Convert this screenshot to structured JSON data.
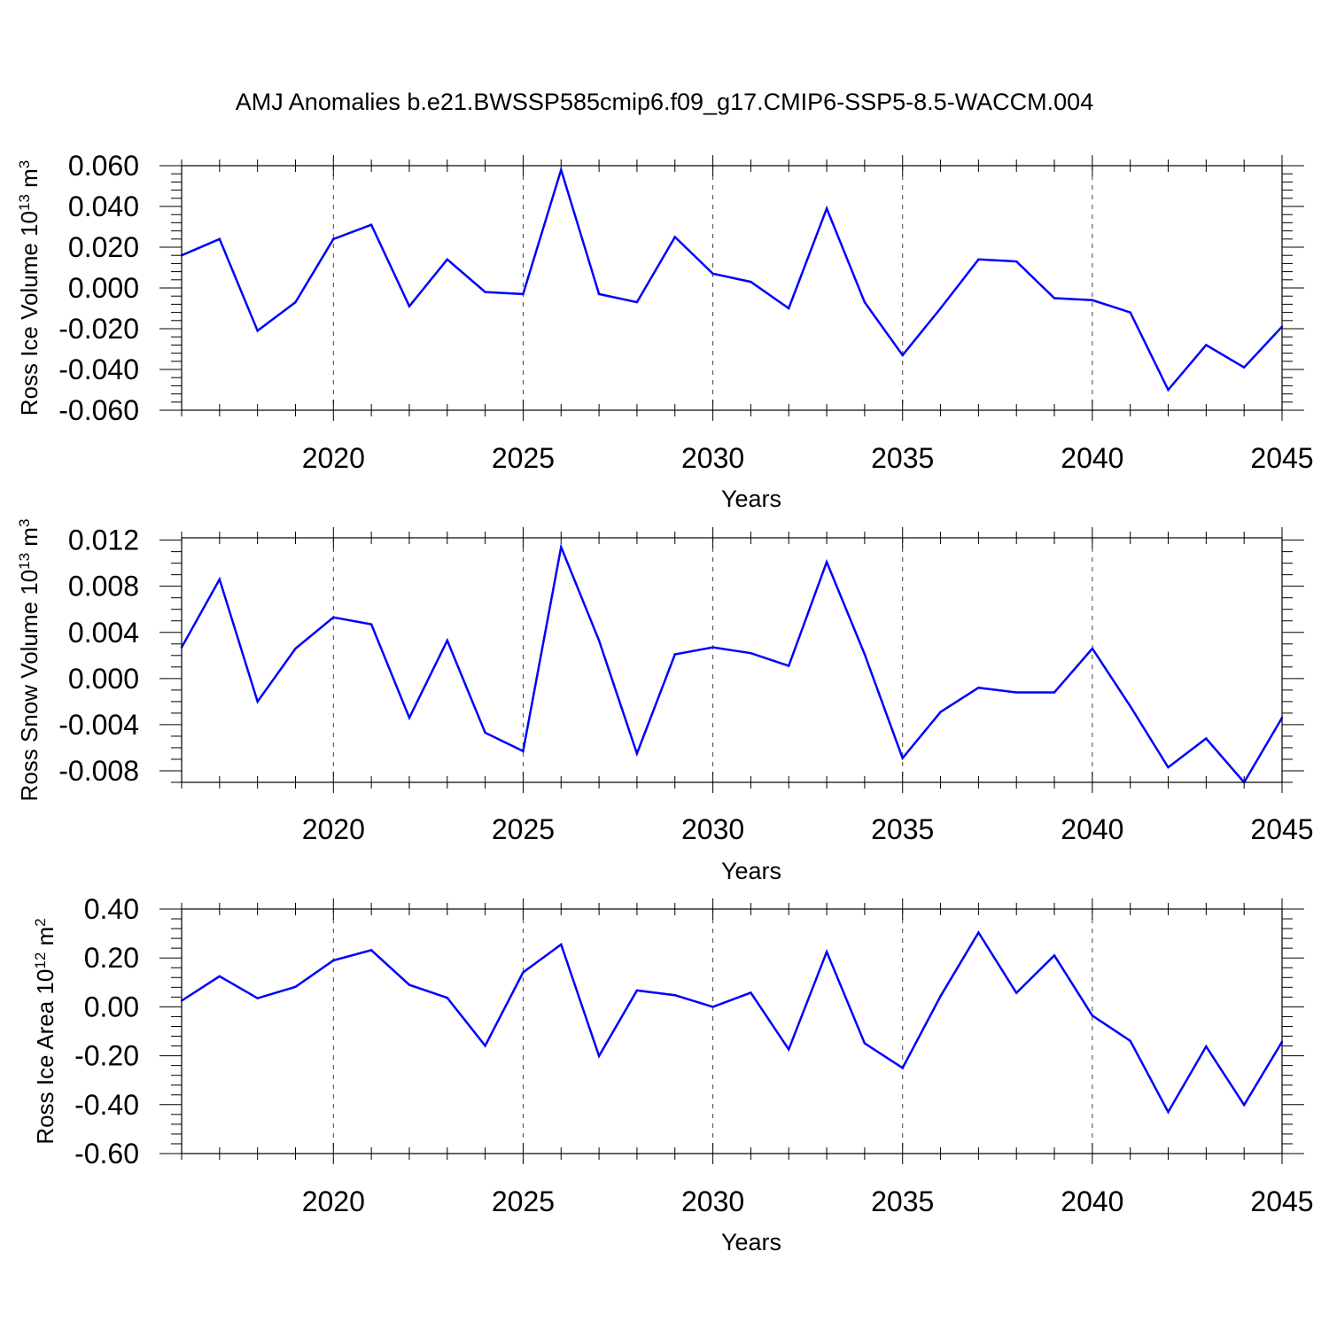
{
  "figure": {
    "title": "AMJ Anomalies b.e21.BWSSP585cmip6.f09_g17.CMIP6-SSP5-8.5-WACCM.004",
    "line_color": "#0000ff"
  },
  "chart_data": [
    {
      "type": "line",
      "title": "AMJ Anomalies b.e21.BWSSP585cmip6.f09_g17.CMIP6-SSP5-8.5-WACCM.004",
      "xlabel": "Years",
      "ylabel": {
        "base": "Ross Ice Volume 10",
        "exp": "13",
        "unit": " m",
        "unit_exp": "3"
      },
      "xlim": [
        2016,
        2045
      ],
      "ylim": [
        -0.06,
        0.06
      ],
      "xticks": [
        2020,
        2025,
        2030,
        2035,
        2040,
        2045
      ],
      "yticks": [
        "-0.060",
        "-0.040",
        "-0.020",
        "0.000",
        "0.020",
        "0.040",
        "0.060"
      ],
      "yminor": 0.004,
      "gridlines": "dashed vertical at major x ticks",
      "series": [
        {
          "name": "Ross Ice Volume",
          "x": [
            2016,
            2017,
            2018,
            2019,
            2020,
            2021,
            2022,
            2023,
            2024,
            2025,
            2026,
            2027,
            2028,
            2029,
            2030,
            2031,
            2032,
            2033,
            2034,
            2035,
            2036,
            2037,
            2038,
            2039,
            2040,
            2041,
            2042,
            2043,
            2044,
            2045
          ],
          "values": [
            0.016,
            0.024,
            -0.021,
            -0.007,
            0.024,
            0.031,
            -0.009,
            0.014,
            -0.002,
            -0.003,
            0.058,
            -0.003,
            -0.007,
            0.025,
            0.007,
            0.003,
            -0.01,
            0.039,
            -0.007,
            -0.033,
            -0.01,
            0.014,
            0.013,
            -0.005,
            -0.006,
            -0.012,
            -0.05,
            -0.028,
            -0.039,
            -0.019
          ]
        }
      ]
    },
    {
      "type": "line",
      "xlabel": "Years",
      "ylabel": {
        "base": "Ross Snow Volume 10",
        "exp": "13",
        "unit": " m",
        "unit_exp": "3"
      },
      "xlim": [
        2016,
        2045
      ],
      "ylim": [
        -0.009,
        0.0122
      ],
      "xticks": [
        2020,
        2025,
        2030,
        2035,
        2040,
        2045
      ],
      "yticks": [
        "-0.008",
        "-0.004",
        "0.000",
        "0.004",
        "0.008",
        "0.012"
      ],
      "yminor": 0.001,
      "gridlines": "dashed vertical at major x ticks",
      "series": [
        {
          "name": "Ross Snow Volume",
          "x": [
            2016,
            2017,
            2018,
            2019,
            2020,
            2021,
            2022,
            2023,
            2024,
            2025,
            2026,
            2027,
            2028,
            2029,
            2030,
            2031,
            2032,
            2033,
            2034,
            2035,
            2036,
            2037,
            2038,
            2039,
            2040,
            2041,
            2042,
            2043,
            2044,
            2045
          ],
          "values": [
            0.0027,
            0.0086,
            -0.002,
            0.0026,
            0.0053,
            0.0047,
            -0.0034,
            0.0033,
            -0.0047,
            -0.0063,
            0.0114,
            0.0033,
            -0.0065,
            0.0021,
            0.0027,
            0.0022,
            0.0011,
            0.0101,
            0.0021,
            -0.0069,
            -0.0029,
            -0.0008,
            -0.0012,
            -0.0012,
            0.0026,
            -0.0024,
            -0.0077,
            -0.0052,
            -0.009,
            -0.0034
          ]
        }
      ]
    },
    {
      "type": "line",
      "xlabel": "Years",
      "ylabel": {
        "base": "Ross Ice Area 10",
        "exp": "12",
        "unit": " m",
        "unit_exp": "2"
      },
      "xlim": [
        2016,
        2045
      ],
      "ylim": [
        -0.6,
        0.4
      ],
      "xticks": [
        2020,
        2025,
        2030,
        2035,
        2040,
        2045
      ],
      "yticks": [
        "-0.60",
        "-0.40",
        "-0.20",
        "0.00",
        "0.20",
        "0.40"
      ],
      "yminor": 0.04,
      "gridlines": "dashed vertical at major x ticks",
      "series": [
        {
          "name": "Ross Ice Area",
          "x": [
            2016,
            2017,
            2018,
            2019,
            2020,
            2021,
            2022,
            2023,
            2024,
            2025,
            2026,
            2027,
            2028,
            2029,
            2030,
            2031,
            2032,
            2033,
            2034,
            2035,
            2036,
            2037,
            2038,
            2039,
            2040,
            2041,
            2042,
            2043,
            2044,
            2045
          ],
          "values": [
            0.025,
            0.125,
            0.035,
            0.082,
            0.19,
            0.232,
            0.09,
            0.037,
            -0.159,
            0.141,
            0.255,
            -0.201,
            0.067,
            0.048,
            0.0,
            0.058,
            -0.174,
            0.225,
            -0.149,
            -0.25,
            0.044,
            0.304,
            0.057,
            0.21,
            -0.036,
            -0.139,
            -0.43,
            -0.162,
            -0.401,
            -0.143
          ]
        }
      ]
    }
  ]
}
